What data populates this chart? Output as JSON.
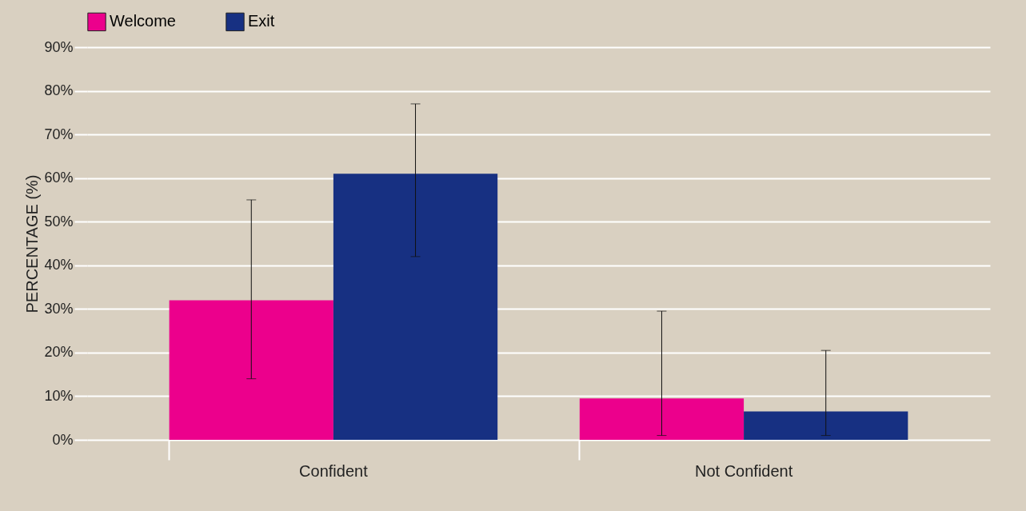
{
  "chart_data": {
    "type": "bar",
    "categories": [
      "Confident",
      "Not Confident"
    ],
    "series": [
      {
        "name": "Welcome",
        "color": "#ec008c",
        "values": [
          32,
          9.5
        ],
        "errors": [
          [
            14,
            55
          ],
          [
            1,
            29.5
          ]
        ]
      },
      {
        "name": "Exit",
        "color": "#173082",
        "values": [
          61,
          6.5
        ],
        "errors": [
          [
            42,
            77
          ],
          [
            1,
            20.5
          ]
        ]
      }
    ],
    "ylabel": "PERCENTAGE (%)",
    "ylim": [
      0,
      90
    ],
    "yticks": [
      {
        "value": 0,
        "label": "0%"
      },
      {
        "value": 10,
        "label": "10%"
      },
      {
        "value": 20,
        "label": "20%"
      },
      {
        "value": 30,
        "label": "30%"
      },
      {
        "value": 40,
        "label": "40%"
      },
      {
        "value": 50,
        "label": "50%"
      },
      {
        "value": 60,
        "label": "60%"
      },
      {
        "value": 70,
        "label": "70%"
      },
      {
        "value": 80,
        "label": "80%"
      },
      {
        "value": 90,
        "label": "90%"
      }
    ],
    "grid": "y",
    "legend": "top"
  }
}
